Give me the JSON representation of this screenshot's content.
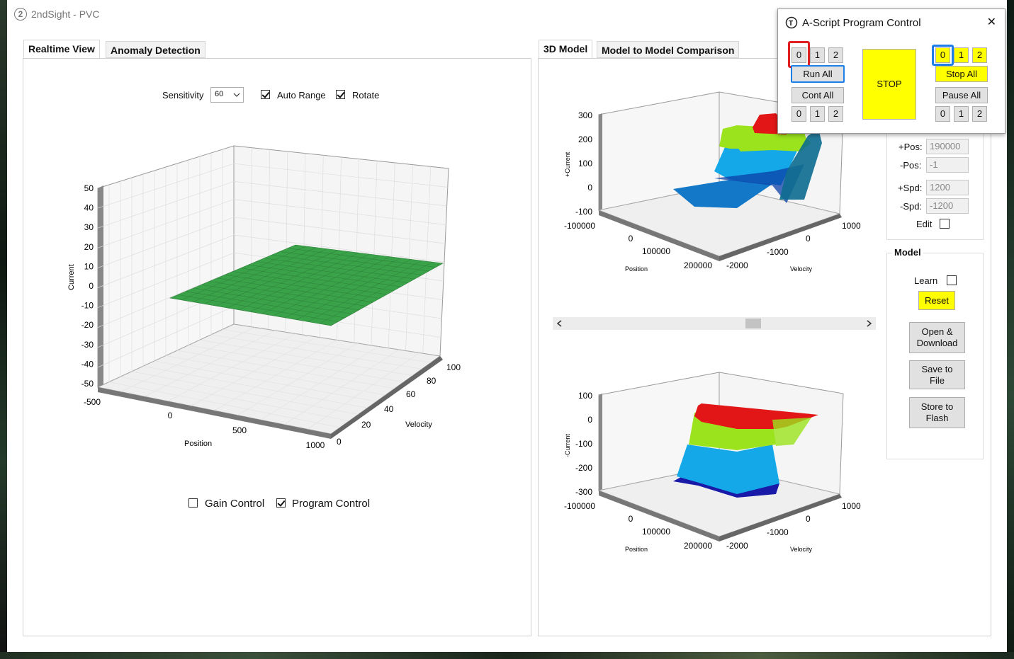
{
  "window": {
    "title": "2ndSight - PVC"
  },
  "left_tabs": [
    {
      "label": "Realtime View",
      "active": true
    },
    {
      "label": "Anomaly Detection",
      "active": false
    }
  ],
  "right_tabs": [
    {
      "label": "3D Model",
      "active": true
    },
    {
      "label": "Model to Model Comparison",
      "active": false
    }
  ],
  "realtime": {
    "sensitivity_label": "Sensitivity",
    "sensitivity_value": "60",
    "auto_range_label": "Auto Range",
    "auto_range_checked": true,
    "rotate_label": "Rotate",
    "rotate_checked": true,
    "gain_control_label": "Gain Control",
    "gain_control_checked": false,
    "program_control_label": "Program Control",
    "program_control_checked": true
  },
  "chart_data": [
    {
      "type": "surface",
      "xlabel": "Position",
      "ylabel": "Velocity",
      "zlabel": "Current",
      "x_ticks": [
        "-500",
        "0",
        "500",
        "1000"
      ],
      "y_ticks": [
        "0",
        "20",
        "40",
        "60",
        "80",
        "100"
      ],
      "z_ticks": [
        "50",
        "40",
        "30",
        "20",
        "10",
        "0",
        "-10",
        "-20",
        "-30",
        "-40",
        "-50"
      ],
      "xlim": [
        -500,
        1000
      ],
      "ylim": [
        0,
        100
      ],
      "zlim": [
        -50,
        50
      ],
      "surface_value": 0,
      "surface_color": "#3aa34a"
    },
    {
      "type": "surface",
      "xlabel": "Position",
      "ylabel": "Velocity",
      "zlabel": "+Current",
      "x_ticks": [
        "-100000",
        "0",
        "100000",
        "200000"
      ],
      "y_ticks": [
        "-2000",
        "-1000",
        "0",
        "1000"
      ],
      "z_ticks": [
        "300",
        "200",
        "100",
        "0",
        "-100"
      ],
      "zlim": [
        -100,
        300
      ],
      "band_colors": [
        "#0a3fa8",
        "#14a8e8",
        "#9be31c",
        "#e21616"
      ]
    },
    {
      "type": "surface",
      "xlabel": "Position",
      "ylabel": "Velocity",
      "zlabel": "-Current",
      "x_ticks": [
        "-100000",
        "0",
        "100000",
        "200000"
      ],
      "y_ticks": [
        "-2000",
        "-1000",
        "0",
        "1000"
      ],
      "z_ticks": [
        "100",
        "0",
        "-100",
        "-200",
        "-300"
      ],
      "zlim": [
        -300,
        100
      ],
      "band_colors": [
        "#1a1aa8",
        "#14a8e8",
        "#9be31c",
        "#e21616"
      ]
    }
  ],
  "limits": {
    "pos_plus_label": "+Pos:",
    "pos_plus_value": "190000",
    "pos_minus_label": "-Pos:",
    "pos_minus_value": "-1",
    "spd_plus_label": "+Spd:",
    "spd_plus_value": "1200",
    "spd_minus_label": "-Spd:",
    "spd_minus_value": "-1200",
    "edit_label": "Edit"
  },
  "model": {
    "title": "Model",
    "learn_label": "Learn",
    "reset_label": "Reset",
    "open_download_label": "Open & Download",
    "save_file_label": "Save to File",
    "store_flash_label": "Store to Flash"
  },
  "ascript": {
    "title": "A-Script Program Control",
    "close_glyph": "✕",
    "left_top_buttons": [
      "0",
      "1",
      "2"
    ],
    "run_all_label": "Run All",
    "cont_all_label": "Cont All",
    "left_bottom_buttons": [
      "0",
      "1",
      "2"
    ],
    "stop_label": "STOP",
    "right_top_buttons": [
      "0",
      "1",
      "2"
    ],
    "stop_all_label": "Stop All",
    "pause_all_label": "Pause All",
    "right_bottom_buttons": [
      "0",
      "1",
      "2"
    ],
    "highlight_red": "#e02020",
    "highlight_blue": "#1e7ee8",
    "stop_color": "#ffff00"
  }
}
